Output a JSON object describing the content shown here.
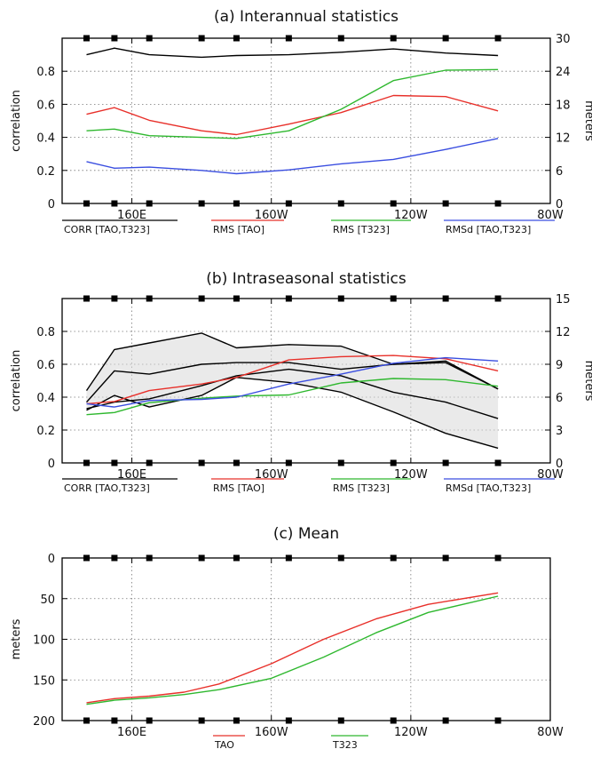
{
  "chart_data": [
    {
      "type": "line",
      "title": "(a) Interannual statistics",
      "ylabel": "correlation",
      "ylabel_right": "meters",
      "ylim": [
        0,
        1.0
      ],
      "ylim_right": [
        0,
        30
      ],
      "yticks": [
        0,
        0.2,
        0.4,
        0.6,
        0.8
      ],
      "yticks_right": [
        0,
        6,
        12,
        18,
        24,
        30
      ],
      "xlim": [
        140,
        280
      ],
      "xticks": [
        {
          "lon": 160,
          "label": "160E"
        },
        {
          "lon": 200,
          "label": "160W"
        },
        {
          "lon": 240,
          "label": "120W"
        },
        {
          "lon": 280,
          "label": "80W"
        }
      ],
      "station_lons": [
        147,
        155,
        165,
        180,
        190,
        205,
        220,
        235,
        250,
        265
      ],
      "x": [
        147,
        155,
        165,
        180,
        190,
        205,
        220,
        235,
        250,
        265
      ],
      "series": [
        {
          "name": "CORR [TAO,T323]",
          "color": "#000000",
          "axis": "left",
          "values": [
            0.9,
            0.94,
            0.9,
            0.885,
            0.895,
            0.9,
            0.915,
            0.935,
            0.91,
            0.895
          ]
        },
        {
          "name": "RMS [TAO]",
          "color": "#e8302a",
          "axis": "right",
          "values": [
            16.2,
            17.4,
            15.1,
            13.2,
            12.5,
            14.4,
            16.5,
            19.6,
            19.4,
            16.8
          ]
        },
        {
          "name": "RMS [T323]",
          "color": "#2fb82f",
          "axis": "right",
          "values": [
            13.2,
            13.5,
            12.3,
            12.0,
            11.8,
            13.2,
            17.1,
            22.3,
            24.2,
            24.3
          ]
        },
        {
          "name": "RMSd [TAO,T323]",
          "color": "#3a4ee0",
          "axis": "right",
          "values": [
            7.6,
            6.4,
            6.6,
            6.0,
            5.4,
            6.1,
            7.2,
            8.0,
            9.8,
            11.8
          ]
        }
      ],
      "legend": [
        "CORR [TAO,T323]",
        "RMS [TAO]",
        "RMS [T323]",
        "RMSd [TAO,T323]"
      ]
    },
    {
      "type": "line",
      "title": "(b) Intraseasonal statistics",
      "ylabel": "correlation",
      "ylabel_right": "meters",
      "ylim": [
        0,
        1.0
      ],
      "ylim_right": [
        0,
        15
      ],
      "yticks": [
        0,
        0.2,
        0.4,
        0.6,
        0.8
      ],
      "yticks_right": [
        0,
        3,
        6,
        9,
        12,
        15
      ],
      "xlim": [
        140,
        280
      ],
      "xticks": [
        {
          "lon": 160,
          "label": "160E"
        },
        {
          "lon": 200,
          "label": "160W"
        },
        {
          "lon": 240,
          "label": "120W"
        },
        {
          "lon": 280,
          "label": "80W"
        }
      ],
      "station_lons": [
        147,
        155,
        165,
        180,
        190,
        205,
        220,
        235,
        250,
        265
      ],
      "x": [
        147,
        155,
        165,
        180,
        190,
        205,
        220,
        235,
        250,
        265
      ],
      "series": [
        {
          "name": "CORR [TAO,T323]",
          "color": "#000000",
          "axis": "left",
          "values": [
            0.37,
            0.56,
            0.54,
            0.6,
            0.61,
            0.61,
            0.57,
            0.6,
            0.62,
            0.45
          ]
        },
        {
          "name": "CORR upper",
          "color": "#000000",
          "axis": "left",
          "values": [
            0.44,
            0.69,
            0.73,
            0.79,
            0.7,
            0.72,
            0.71,
            0.6,
            0.61,
            0.45
          ]
        },
        {
          "name": "CORR lower",
          "color": "#000000",
          "axis": "left",
          "values": [
            0.32,
            0.41,
            0.34,
            0.41,
            0.52,
            0.49,
            0.43,
            0.31,
            0.18,
            0.09
          ]
        },
        {
          "name": "CORR inner",
          "color": "#000000",
          "axis": "left",
          "values": [
            0.33,
            0.37,
            0.39,
            0.47,
            0.53,
            0.57,
            0.53,
            0.43,
            0.37,
            0.27
          ]
        },
        {
          "name": "RMS [TAO]",
          "color": "#e8302a",
          "axis": "right",
          "values": [
            5.4,
            5.6,
            6.6,
            7.2,
            7.8,
            9.4,
            9.7,
            9.8,
            9.5,
            8.4
          ]
        },
        {
          "name": "RMS [T323]",
          "color": "#2fb82f",
          "axis": "right",
          "values": [
            4.4,
            4.6,
            5.5,
            5.9,
            6.1,
            6.2,
            7.3,
            7.7,
            7.6,
            7.0
          ]
        },
        {
          "name": "RMSd [TAO,T323]",
          "color": "#3a4ee0",
          "axis": "right",
          "values": [
            5.4,
            5.1,
            5.7,
            5.8,
            6.0,
            7.2,
            8.1,
            9.1,
            9.6,
            9.3
          ]
        }
      ],
      "legend": [
        "CORR [TAO,T323]",
        "RMS [TAO]",
        "RMS [T323]",
        "RMSd [TAO,T323]"
      ]
    },
    {
      "type": "line",
      "title": "(c) Mean",
      "ylabel": "meters",
      "ylim": [
        200,
        0
      ],
      "yticks": [
        0,
        50,
        100,
        150,
        200
      ],
      "xlim": [
        140,
        280
      ],
      "xticks": [
        {
          "lon": 160,
          "label": "160E"
        },
        {
          "lon": 200,
          "label": "160W"
        },
        {
          "lon": 240,
          "label": "120W"
        },
        {
          "lon": 280,
          "label": "80W"
        }
      ],
      "station_lons": [
        147,
        155,
        165,
        180,
        190,
        205,
        220,
        235,
        250,
        265
      ],
      "x": [
        147,
        155,
        165,
        175,
        185,
        200,
        215,
        230,
        245,
        265
      ],
      "series": [
        {
          "name": "TAO",
          "color": "#e8302a",
          "values": [
            178,
            173,
            170,
            165,
            155,
            130,
            100,
            75,
            57,
            43
          ]
        },
        {
          "name": "T323",
          "color": "#2fb82f",
          "values": [
            180,
            175,
            172,
            168,
            162,
            148,
            122,
            92,
            67,
            47
          ]
        }
      ],
      "legend": [
        "TAO",
        "T323"
      ]
    }
  ]
}
